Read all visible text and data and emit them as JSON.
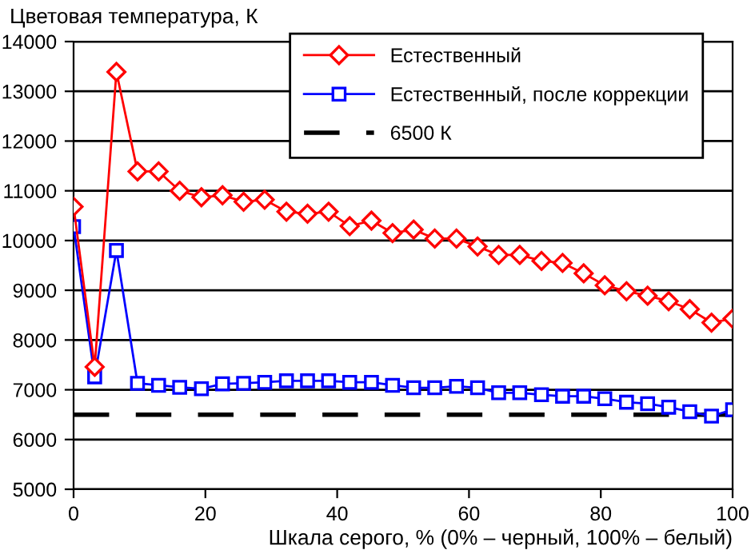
{
  "chart_data": {
    "type": "line",
    "ylabel": "Цветовая температура, К",
    "xlabel": "Шкала серого, % (0% – черный, 100% – белый)",
    "x": [
      0,
      3.2,
      6.5,
      9.7,
      12.9,
      16.1,
      19.4,
      22.6,
      25.8,
      29.0,
      32.3,
      35.5,
      38.7,
      41.9,
      45.2,
      48.4,
      51.6,
      54.8,
      58.1,
      61.3,
      64.5,
      67.7,
      71.0,
      74.2,
      77.4,
      80.6,
      83.9,
      87.1,
      90.3,
      93.5,
      96.8,
      100
    ],
    "series": [
      {
        "name": "Естественный",
        "color": "#ff0000",
        "marker": "diamond",
        "values": [
          10680,
          7460,
          13390,
          11390,
          11390,
          11000,
          10870,
          10910,
          10780,
          10820,
          10580,
          10540,
          10580,
          10290,
          10400,
          10150,
          10220,
          10040,
          10040,
          9880,
          9710,
          9710,
          9590,
          9550,
          9340,
          9100,
          8980,
          8890,
          8780,
          8620,
          8350,
          8430
        ]
      },
      {
        "name": "Естественный, после коррекции",
        "color": "#0000ff",
        "marker": "square",
        "values": [
          10280,
          7260,
          9800,
          7130,
          7090,
          7050,
          7020,
          7120,
          7130,
          7150,
          7180,
          7180,
          7180,
          7150,
          7150,
          7090,
          7040,
          7040,
          7070,
          7040,
          6940,
          6940,
          6900,
          6870,
          6870,
          6820,
          6750,
          6720,
          6650,
          6560,
          6470,
          6600
        ]
      }
    ],
    "ref_lines": [
      {
        "axis": "y",
        "value": 6500,
        "label": "6500 К",
        "color": "#000000",
        "line_style": "dashed"
      }
    ],
    "xlim": [
      0,
      100
    ],
    "xticks": [
      0,
      20,
      40,
      60,
      80,
      100
    ],
    "ylim": [
      5000,
      14000
    ],
    "yticks": [
      5000,
      6000,
      7000,
      8000,
      9000,
      10000,
      11000,
      12000,
      13000,
      14000
    ],
    "grid": "y",
    "legend": "top right",
    "line_style": "solid"
  }
}
